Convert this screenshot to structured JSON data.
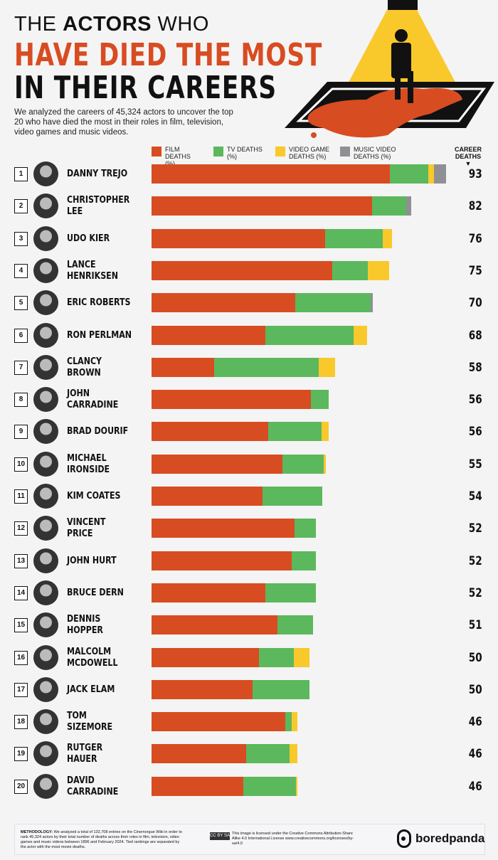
{
  "title": {
    "line1_pre": "THE ",
    "line1_bold": "ACTORS",
    "line1_post": " WHO",
    "line2": "HAVE DIED THE MOST",
    "line3": "IN THEIR CAREERS"
  },
  "intro": "We analyzed the careers of 45,324 actors to uncover the top 20 who have died the most in their roles in film, television, video games and music videos.",
  "colors": {
    "background": "#f4f4f4",
    "film": "#d84c22",
    "tv": "#5cb85c",
    "video_game": "#f9c82b",
    "music_video": "#8f9094"
  },
  "career_label": "CAREER DEATHS",
  "career_arrow": "▼",
  "chart_data": {
    "type": "bar",
    "orientation": "horizontal",
    "stacked": true,
    "legend_placement": "top",
    "legend": [
      "FILM DEATHS (%)",
      "TV DEATHS (%)",
      "VIDEO GAME DEATHS (%)",
      "MUSIC VIDEO DEATHS (%)"
    ],
    "rows": [
      {
        "rank": "1",
        "name": "DANNY TREJO",
        "total": 93,
        "pct": [
          81,
          13,
          2,
          4
        ]
      },
      {
        "rank": "2",
        "name": "CHRISTOPHER LEE",
        "total": 82,
        "pct": [
          85,
          13,
          0,
          2
        ]
      },
      {
        "rank": "3",
        "name": "UDO KIER",
        "total": 76,
        "pct": [
          72,
          24,
          4,
          0
        ]
      },
      {
        "rank": "4",
        "name": "LANCE HENRIKSEN",
        "total": 75,
        "pct": [
          76,
          15,
          9,
          0
        ]
      },
      {
        "rank": "5",
        "name": "ERIC ROBERTS",
        "total": 70,
        "pct": [
          65,
          34,
          0,
          1
        ]
      },
      {
        "rank": "6",
        "name": "RON PERLMAN",
        "total": 68,
        "pct": [
          53,
          41,
          6,
          0
        ]
      },
      {
        "rank": "7",
        "name": "CLANCY BROWN",
        "total": 58,
        "pct": [
          34,
          57,
          9,
          0
        ]
      },
      {
        "rank": "8",
        "name": "JOHN CARRADINE",
        "total": 56,
        "pct": [
          90,
          10,
          0,
          0
        ]
      },
      {
        "rank": "9",
        "name": "BRAD DOURIF",
        "total": 56,
        "pct": [
          66,
          30,
          4,
          0
        ]
      },
      {
        "rank": "10",
        "name": "MICHAEL IRONSIDE",
        "total": 55,
        "pct": [
          75,
          24,
          1,
          0
        ]
      },
      {
        "rank": "11",
        "name": "KIM COATES",
        "total": 54,
        "pct": [
          65,
          35,
          0,
          0
        ]
      },
      {
        "rank": "12",
        "name": "VINCENT PRICE",
        "total": 52,
        "pct": [
          87,
          13,
          0,
          0
        ]
      },
      {
        "rank": "13",
        "name": "JOHN HURT",
        "total": 52,
        "pct": [
          85,
          15,
          0,
          0
        ]
      },
      {
        "rank": "14",
        "name": "BRUCE DERN",
        "total": 52,
        "pct": [
          69,
          31,
          0,
          0
        ]
      },
      {
        "rank": "15",
        "name": "DENNIS HOPPER",
        "total": 51,
        "pct": [
          78,
          22,
          0,
          0
        ]
      },
      {
        "rank": "16",
        "name": "MALCOLM MCDOWELL",
        "total": 50,
        "pct": [
          68,
          22,
          10,
          0
        ]
      },
      {
        "rank": "17",
        "name": "JACK ELAM",
        "total": 50,
        "pct": [
          64,
          36,
          0,
          0
        ]
      },
      {
        "rank": "18",
        "name": "TOM SIZEMORE",
        "total": 46,
        "pct": [
          92,
          4,
          4,
          0
        ]
      },
      {
        "rank": "19",
        "name": "RUTGER HAUER",
        "total": 46,
        "pct": [
          65,
          30,
          5,
          0
        ]
      },
      {
        "rank": "20",
        "name": "DAVID CARRADINE",
        "total": 46,
        "pct": [
          63,
          36,
          1,
          0
        ]
      }
    ]
  },
  "footer": {
    "methodology_label": "METHODOLOGY:",
    "methodology": " We analyzed a total of 132,708 entries on the Cinemorgue Wiki in order to rank 45,324 actors by their total number of deaths across their roles in film, television, video games and music videos between 1896 and February 2024. Tied rankings are separated by the actor with the most movie deaths.",
    "cc_badge": "CC BY SA",
    "license": "This image is licensed under the Creative Commons Attribution-Share Alike 4.0 International License www.creativecommons.org/licenses/by-sa/4.0",
    "brand": "boredpanda"
  }
}
